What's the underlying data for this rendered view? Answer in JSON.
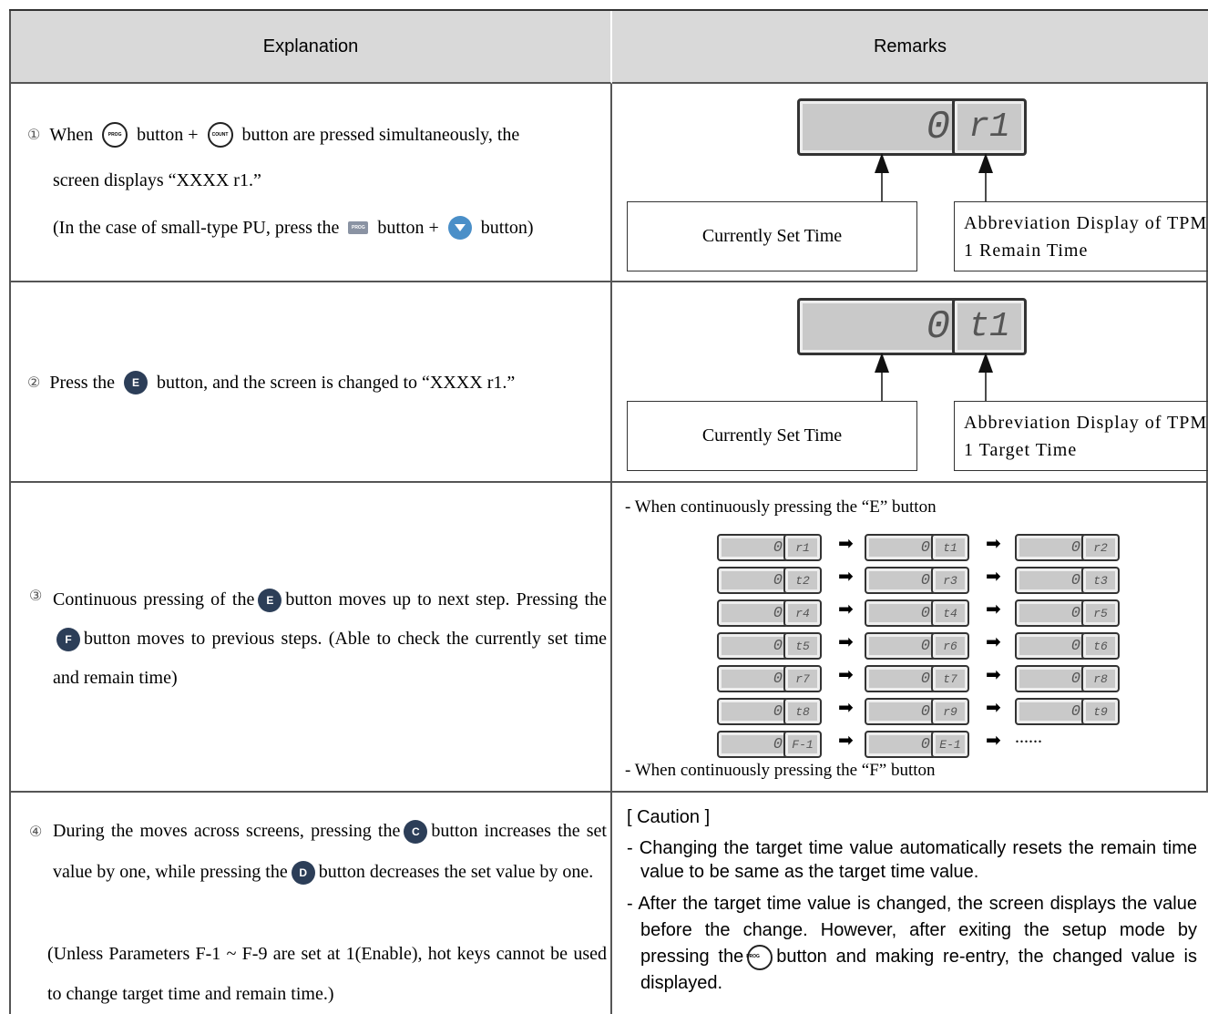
{
  "table": {
    "header": [
      "Explanation",
      "Remarks"
    ],
    "buttons": {
      "prog": "PROG",
      "count": "COUNT",
      "e": "E",
      "f": "F",
      "c": "C",
      "d": "D"
    },
    "display_value": "0",
    "rows": [
      {
        "marker": "①",
        "explanation": [
          "When",
          "button +",
          "button are pressed simultaneously, the",
          "screen displays “XXXX r1.”",
          "(In the case of small-type PU, press the",
          "button +",
          "button)"
        ],
        "remarks": {
          "code": "r1",
          "left_label": "Currently Set Time",
          "right_label": "Abbreviation Display of TPM 1 Remain Time"
        }
      },
      {
        "marker": "②",
        "explanation": [
          "Press the",
          "button, and the screen is changed to “XXXX r1.”"
        ],
        "remarks": {
          "code": "t1",
          "left_label": "Currently Set Time",
          "right_label": "Abbreviation Display of TPM 1 Target Time"
        }
      },
      {
        "marker": "③",
        "explanation": [
          "Continuous pressing of the",
          "button moves up to next step. Pressing the",
          "button moves to previous steps. (Able to check the currently set time and remain time)"
        ],
        "remarks": {
          "intro": "- When continuously pressing the “E” button",
          "sequence": [
            "r1",
            "t1",
            "r2",
            "t2",
            "r3",
            "t3",
            "r4",
            "t4",
            "r5",
            "t5",
            "r6",
            "t6",
            "r7",
            "t7",
            "r8",
            "t8",
            "r9",
            "t9",
            "F-1",
            "E-1"
          ],
          "ellipsis": "......",
          "outro": "- When continuously pressing the “F” button"
        }
      },
      {
        "marker": "④",
        "explanation": [
          "During the moves across screens, pressing the",
          "button increases the set value by one, while pressing the",
          "button decreases the set value by one.",
          "(Unless Parameters F-1 ~ F-9 are set at 1(Enable), hot keys cannot be used to change target time and remain time.)"
        ],
        "remarks": {
          "title": "[ Caution ]",
          "items": [
            "- Changing the target time value automatically resets the remain time value to be same as the target time value.",
            "- After the target time value is changed, the screen displays the value before the change. However, after exiting the setup mode by pressing the",
            "button and making re-entry, the changed value is displayed."
          ]
        }
      }
    ]
  }
}
